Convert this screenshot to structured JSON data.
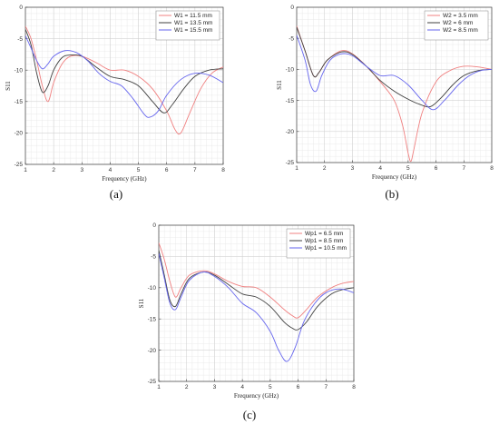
{
  "figure": {
    "captions": [
      "(a)",
      "(b)",
      "(c)"
    ]
  },
  "chart_data": [
    {
      "type": "line",
      "xlabel": "Frequency (GHz)",
      "ylabel": "S11",
      "xlim": [
        1,
        8
      ],
      "ylim": [
        -25,
        0
      ],
      "xticks": [
        1,
        2,
        3,
        4,
        5,
        6,
        7,
        8
      ],
      "yticks": [
        0,
        -5,
        -10,
        -15,
        -20,
        -25
      ],
      "grid": true,
      "legend_position": "top-right",
      "series": [
        {
          "name": "W1 = 11.5 mm",
          "color": "#f08080",
          "x": [
            1.0,
            1.2,
            1.4,
            1.6,
            1.8,
            2.0,
            2.3,
            2.6,
            3.0,
            3.5,
            4.0,
            4.5,
            5.0,
            5.5,
            6.0,
            6.3,
            6.5,
            6.8,
            7.2,
            7.6,
            8.0
          ],
          "y": [
            -3.0,
            -5.0,
            -8.5,
            -12.5,
            -15.0,
            -12.0,
            -9.0,
            -7.8,
            -7.8,
            -8.8,
            -10.0,
            -10.0,
            -11.0,
            -13.0,
            -16.5,
            -19.5,
            -20.0,
            -17.0,
            -13.0,
            -10.5,
            -9.5
          ]
        },
        {
          "name": "W1 = 13.5 mm",
          "color": "#404040",
          "x": [
            1.0,
            1.2,
            1.4,
            1.6,
            1.8,
            2.0,
            2.3,
            2.6,
            3.0,
            3.5,
            4.0,
            4.5,
            5.0,
            5.5,
            5.9,
            6.2,
            6.6,
            7.0,
            7.5,
            8.0
          ],
          "y": [
            -3.5,
            -6.0,
            -10.5,
            -13.5,
            -12.5,
            -10.0,
            -8.0,
            -7.6,
            -7.8,
            -9.5,
            -11.0,
            -11.5,
            -12.5,
            -15.0,
            -16.8,
            -15.5,
            -13.0,
            -11.0,
            -10.0,
            -9.8
          ]
        },
        {
          "name": "W1 = 15.5 mm",
          "color": "#6666ee",
          "x": [
            1.0,
            1.2,
            1.4,
            1.6,
            1.8,
            2.0,
            2.4,
            2.8,
            3.2,
            3.6,
            4.0,
            4.4,
            4.8,
            5.2,
            5.4,
            5.7,
            6.0,
            6.5,
            7.0,
            7.5,
            8.0
          ],
          "y": [
            -4.5,
            -6.5,
            -8.5,
            -9.8,
            -9.0,
            -7.8,
            -6.9,
            -7.2,
            -8.5,
            -10.5,
            -11.8,
            -12.5,
            -14.5,
            -17.0,
            -17.5,
            -16.5,
            -14.0,
            -11.5,
            -10.5,
            -10.8,
            -12.0
          ]
        }
      ]
    },
    {
      "type": "line",
      "xlabel": "Frequency (GHz)",
      "ylabel": "S11",
      "xlim": [
        1,
        8
      ],
      "ylim": [
        -25,
        0
      ],
      "xticks": [
        1,
        2,
        3,
        4,
        5,
        6,
        7,
        8
      ],
      "yticks": [
        0,
        -5,
        -10,
        -15,
        -20,
        -25
      ],
      "grid": true,
      "legend_position": "top-right",
      "series": [
        {
          "name": "W2 = 3.5 mm",
          "color": "#f08080",
          "x": [
            1.0,
            1.3,
            1.6,
            1.8,
            2.1,
            2.6,
            3.0,
            3.5,
            4.0,
            4.5,
            4.8,
            5.0,
            5.1,
            5.2,
            5.5,
            6.0,
            6.5,
            7.0,
            7.5,
            8.0
          ],
          "y": [
            -3.0,
            -7.0,
            -11.0,
            -10.5,
            -8.5,
            -7.0,
            -7.5,
            -9.5,
            -12.0,
            -15.0,
            -19.0,
            -23.5,
            -24.8,
            -23.0,
            -17.0,
            -12.0,
            -10.2,
            -9.5,
            -9.6,
            -10.0
          ]
        },
        {
          "name": "W2 = 6 mm",
          "color": "#404040",
          "x": [
            1.0,
            1.3,
            1.6,
            1.8,
            2.1,
            2.6,
            3.0,
            3.5,
            4.0,
            4.5,
            5.0,
            5.4,
            5.8,
            6.2,
            6.6,
            7.0,
            7.5,
            8.0
          ],
          "y": [
            -3.2,
            -7.0,
            -11.0,
            -10.5,
            -8.5,
            -7.2,
            -7.6,
            -9.5,
            -11.8,
            -13.5,
            -14.8,
            -15.6,
            -16.0,
            -14.5,
            -12.5,
            -11.0,
            -10.2,
            -10.0
          ]
        },
        {
          "name": "W2 = 8.5 mm",
          "color": "#6666ee",
          "x": [
            1.0,
            1.3,
            1.5,
            1.7,
            1.9,
            2.2,
            2.6,
            3.0,
            3.5,
            4.0,
            4.5,
            5.0,
            5.5,
            5.9,
            6.3,
            6.8,
            7.2,
            7.6,
            8.0
          ],
          "y": [
            -4.5,
            -8.5,
            -12.5,
            -13.5,
            -11.0,
            -8.5,
            -7.5,
            -7.8,
            -9.5,
            -11.0,
            -11.0,
            -12.5,
            -15.0,
            -16.5,
            -15.0,
            -12.5,
            -11.0,
            -10.2,
            -10.0
          ]
        }
      ]
    },
    {
      "type": "line",
      "xlabel": "Frequency (GHz)",
      "ylabel": "S11",
      "xlim": [
        1,
        8
      ],
      "ylim": [
        -25,
        0
      ],
      "xticks": [
        1,
        2,
        3,
        4,
        5,
        6,
        7,
        8
      ],
      "yticks": [
        0,
        -5,
        -10,
        -15,
        -20,
        -25
      ],
      "grid": true,
      "legend_position": "top-right",
      "series": [
        {
          "name": "Wp1 = 6.5 mm",
          "color": "#f08080",
          "x": [
            1.0,
            1.2,
            1.4,
            1.6,
            1.8,
            2.1,
            2.6,
            3.0,
            3.5,
            4.0,
            4.5,
            5.0,
            5.5,
            5.8,
            6.0,
            6.3,
            6.7,
            7.2,
            7.6,
            8.0
          ],
          "y": [
            -2.8,
            -5.5,
            -9.0,
            -11.5,
            -10.0,
            -8.0,
            -7.3,
            -7.8,
            -9.0,
            -9.8,
            -10.0,
            -11.5,
            -13.5,
            -14.5,
            -14.8,
            -13.5,
            -11.5,
            -10.0,
            -9.3,
            -9.0
          ]
        },
        {
          "name": "Wp1 = 8.5 mm",
          "color": "#404040",
          "x": [
            1.0,
            1.2,
            1.4,
            1.6,
            1.8,
            2.1,
            2.6,
            3.0,
            3.5,
            4.0,
            4.5,
            5.0,
            5.5,
            5.8,
            6.0,
            6.3,
            6.7,
            7.2,
            7.6,
            8.0
          ],
          "y": [
            -4.0,
            -8.0,
            -12.0,
            -13.0,
            -11.0,
            -8.5,
            -7.5,
            -8.0,
            -9.5,
            -11.0,
            -11.5,
            -13.0,
            -15.5,
            -16.5,
            -16.7,
            -15.5,
            -13.0,
            -11.0,
            -10.3,
            -10.0
          ]
        },
        {
          "name": "Wp1 = 10.5 mm",
          "color": "#6666ee",
          "x": [
            1.0,
            1.2,
            1.4,
            1.6,
            1.8,
            2.1,
            2.6,
            3.0,
            3.5,
            4.0,
            4.5,
            5.0,
            5.3,
            5.6,
            5.9,
            6.2,
            6.6,
            7.0,
            7.5,
            8.0
          ],
          "y": [
            -4.5,
            -8.5,
            -12.5,
            -13.5,
            -11.5,
            -8.8,
            -7.5,
            -8.2,
            -10.0,
            -12.5,
            -14.0,
            -17.0,
            -20.0,
            -21.8,
            -19.5,
            -15.5,
            -12.5,
            -10.8,
            -10.2,
            -10.8
          ]
        }
      ]
    }
  ]
}
